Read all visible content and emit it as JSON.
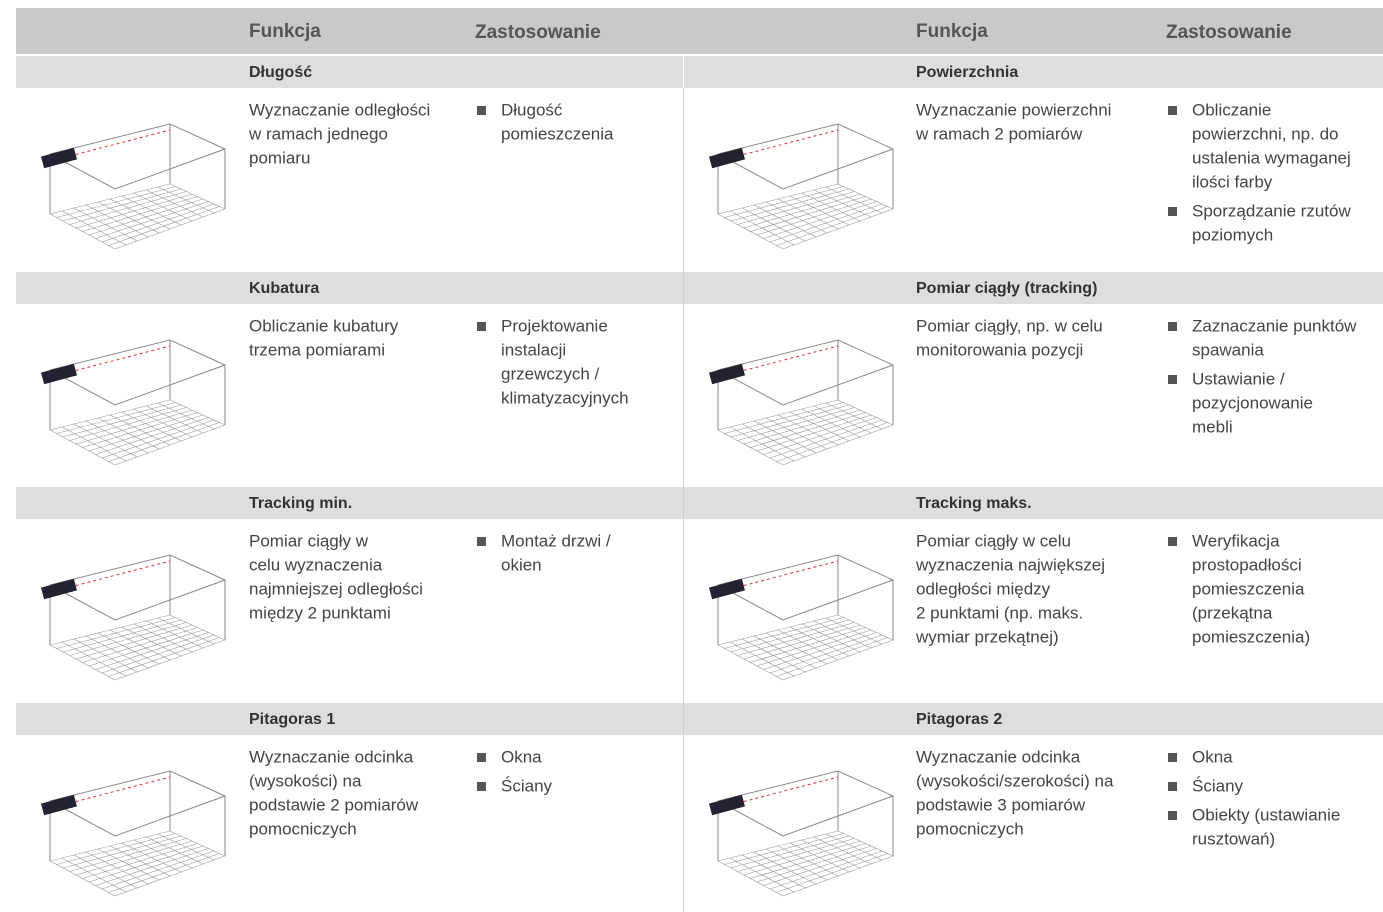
{
  "header": {
    "columns": [
      "Funkcja",
      "Zastosowanie",
      "Funkcja",
      "Zastosowanie"
    ]
  },
  "left": [
    {
      "title": "Długość",
      "description": [
        "Wyznaczanie odległości",
        "w ramach jednego",
        "pomiaru"
      ],
      "bullets": [
        [
          "Długość",
          "pomieszczenia"
        ]
      ]
    },
    {
      "title": "Kubatura",
      "description": [
        "Obliczanie kubatury",
        "trzema pomiarami"
      ],
      "bullets": [
        [
          "Projektowanie",
          "instalacji",
          "grzewczych /",
          "klimatyzacyjnych"
        ]
      ]
    },
    {
      "title": "Tracking min.",
      "description": [
        "Pomiar ciągły w",
        "celu wyznaczenia",
        "najmniejszej odległości",
        "między 2 punktami"
      ],
      "bullets": [
        [
          "Montaż drzwi /",
          "okien"
        ]
      ]
    },
    {
      "title": "Pitagoras 1",
      "description": [
        "Wyznaczanie odcinka",
        "(wysokości) na",
        "podstawie 2 pomiarów",
        "pomocniczych"
      ],
      "bullets": [
        [
          "Okna"
        ],
        [
          "Ściany"
        ]
      ]
    }
  ],
  "right": [
    {
      "title": "Powierzchnia",
      "description": [
        "Wyznaczanie powierzchni",
        "w ramach 2 pomiarów"
      ],
      "bullets": [
        [
          "Obliczanie",
          "powierzchni, np. do",
          "ustalenia wymaganej",
          "ilości farby"
        ],
        [
          "Sporządzanie rzutów",
          "poziomych"
        ]
      ]
    },
    {
      "title": "Pomiar ciągły (tracking)",
      "description": [
        "Pomiar ciągły, np. w celu",
        "monitorowania pozycji"
      ],
      "bullets": [
        [
          "Zaznaczanie punktów",
          "spawania"
        ],
        [
          "Ustawianie /",
          "pozycjonowanie",
          "mebli"
        ]
      ]
    },
    {
      "title": "Tracking maks.",
      "description": [
        "Pomiar ciągły w celu",
        "wyznaczenia największej",
        "odległości między",
        "2 punktami (np. maks.",
        "wymiar przekątnej)"
      ],
      "bullets": [
        [
          "Weryfikacja",
          "prostopadłości",
          "pomieszczenia",
          "(przekątna",
          "pomieszczenia)"
        ]
      ]
    },
    {
      "title": "Pitagoras 2",
      "description": [
        "Wyznaczanie odcinka",
        "(wysokości/szerokości) na",
        "podstawie 3 pomiarów",
        "pomocniczych"
      ],
      "bullets": [
        [
          "Okna"
        ],
        [
          "Ściany"
        ],
        [
          "Obiekty (ustawianie",
          "rusztowań)"
        ]
      ]
    }
  ]
}
